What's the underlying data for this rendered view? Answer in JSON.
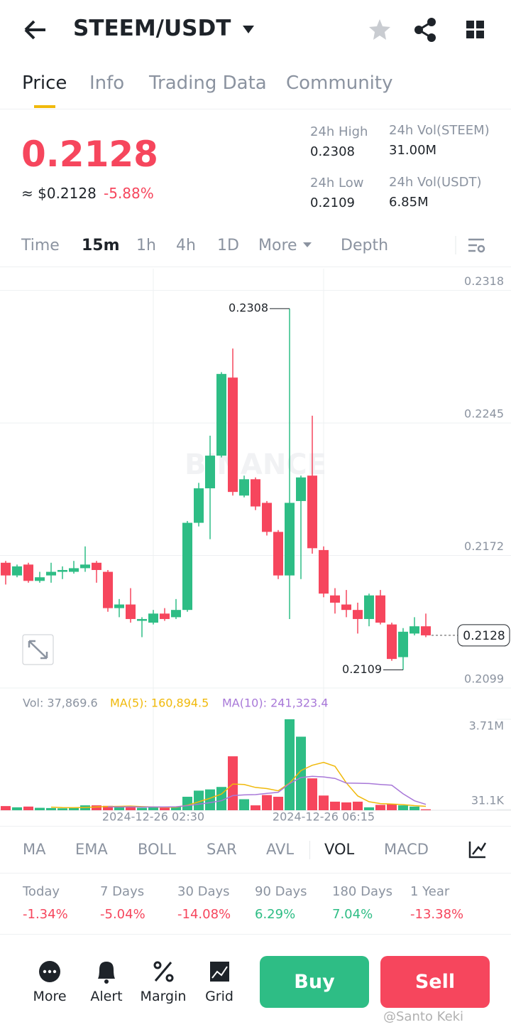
{
  "header": {
    "pair": "STEEM/USDT"
  },
  "tabs": [
    "Price",
    "Info",
    "Trading Data",
    "Community"
  ],
  "price": {
    "last": "0.2128",
    "usd": "≈ $0.2128",
    "change": "-5.88%"
  },
  "stats": [
    {
      "label": "24h High",
      "value": "0.2308"
    },
    {
      "label": "24h Vol(STEEM)",
      "value": "31.00M"
    },
    {
      "label": "24h Low",
      "value": "0.2109"
    },
    {
      "label": "24h Vol(USDT)",
      "value": "6.85M"
    }
  ],
  "intervals": [
    "Time",
    "15m",
    "1h",
    "4h",
    "1D",
    "More",
    "Depth"
  ],
  "chart_data": {
    "type": "candlestick",
    "watermark": "BINANCE",
    "categories": [
      null,
      null,
      null,
      null,
      null,
      null,
      null,
      null,
      null,
      null,
      null,
      null,
      null,
      "2024-12-26 02:30",
      null,
      null,
      null,
      null,
      null,
      null,
      null,
      null,
      null,
      null,
      null,
      null,
      null,
      null,
      "2024-12-26 06:15",
      null,
      null,
      null,
      null,
      null,
      null,
      null,
      null,
      null
    ],
    "open": [
      0.2168,
      0.2161,
      0.2167,
      0.2158,
      0.2161,
      0.2163,
      0.2163,
      0.2165,
      0.2168,
      0.2163,
      0.2143,
      0.2145,
      0.2136,
      0.2135,
      0.214,
      0.2138,
      0.2142,
      0.219,
      0.2209,
      0.2227,
      0.227,
      0.2205,
      0.2214,
      0.2201,
      0.2185,
      0.2161,
      0.2202,
      0.2216,
      0.2175,
      0.215,
      0.2145,
      0.2142,
      0.2137,
      0.215,
      0.2134,
      0.2116,
      0.2129,
      0.2133
    ],
    "high": [
      0.2169,
      0.2167,
      0.2168,
      0.2163,
      0.2168,
      0.2166,
      0.2169,
      0.2177,
      0.2169,
      0.2164,
      0.2148,
      0.2154,
      0.2138,
      0.2142,
      0.2143,
      0.2148,
      0.2191,
      0.2212,
      0.2238,
      0.2273,
      0.2286,
      0.2216,
      0.2215,
      0.2202,
      0.2186,
      0.2308,
      0.2216,
      0.2249,
      0.2177,
      0.2154,
      0.2153,
      0.2146,
      0.2151,
      0.2153,
      0.2135,
      0.2132,
      0.2138,
      0.214
    ],
    "low": [
      0.2156,
      0.216,
      0.2157,
      0.2157,
      0.2157,
      0.2159,
      0.2162,
      0.2163,
      0.2157,
      0.2141,
      0.2138,
      0.2135,
      0.2127,
      0.2134,
      0.2136,
      0.2137,
      0.2141,
      0.2188,
      0.2181,
      0.2226,
      0.2205,
      0.2204,
      0.2197,
      0.2183,
      0.2159,
      0.2137,
      0.2159,
      0.2173,
      0.2149,
      0.214,
      0.2138,
      0.2129,
      0.2133,
      0.2134,
      0.2114,
      0.2109,
      0.2128,
      0.2127
    ],
    "close": [
      0.2161,
      0.2166,
      0.2158,
      0.216,
      0.2163,
      0.2164,
      0.2165,
      0.2167,
      0.2164,
      0.2143,
      0.2145,
      0.2137,
      0.2137,
      0.214,
      0.2137,
      0.2142,
      0.219,
      0.2209,
      0.2227,
      0.2272,
      0.2207,
      0.2214,
      0.2199,
      0.2185,
      0.2161,
      0.2201,
      0.2215,
      0.2176,
      0.2151,
      0.2146,
      0.2142,
      0.2137,
      0.215,
      0.2135,
      0.2115,
      0.213,
      0.2133,
      0.2128
    ],
    "up_color": "#2ebd85",
    "down_color": "#f6465d",
    "ylim": [
      0.2099,
      0.233
    ],
    "yticks": [
      0.2318,
      0.2245,
      0.2172,
      0.2099
    ],
    "grid": true,
    "volume": {
      "values": [
        170000,
        120000,
        150000,
        100000,
        90000,
        80000,
        100000,
        200000,
        200000,
        180000,
        120000,
        150000,
        100000,
        120000,
        100000,
        150000,
        550000,
        800000,
        850000,
        950000,
        2200000,
        450000,
        200000,
        620000,
        550000,
        3710000,
        3000000,
        1300000,
        600000,
        350000,
        320000,
        350000,
        120000,
        220000,
        250000,
        200000,
        150000,
        37869.6
      ],
      "ma5": [
        null,
        null,
        null,
        null,
        126000,
        108000,
        104000,
        114000,
        134000,
        152000,
        160000,
        170000,
        150000,
        134000,
        118000,
        124000,
        204000,
        344000,
        490000,
        660000,
        1070000,
        1050000,
        930000,
        884000,
        794000,
        1106000,
        1616000,
        1836000,
        1952000,
        1792000,
        1114000,
        584000,
        348000,
        272000,
        252000,
        228000,
        188000,
        160894.5
      ],
      "ma10": [
        null,
        null,
        null,
        null,
        null,
        null,
        null,
        null,
        null,
        139000,
        134000,
        137000,
        132000,
        134000,
        135000,
        142000,
        187000,
        247000,
        312000,
        389000,
        597000,
        627000,
        637000,
        687000,
        732000,
        1088000,
        1333000,
        1383000,
        1358000,
        1298000,
        1110000,
        1100000,
        1092000,
        1052000,
        1022000,
        671000,
        386000,
        241323.4
      ],
      "ma5_color": "#f0b90b",
      "ma10_color": "#a878d8",
      "ylim": [
        0,
        3710000
      ],
      "yticks": [
        {
          "value": 3710000,
          "label": "3.71M"
        },
        {
          "value": 31100,
          "label": "31.1K"
        }
      ],
      "legend": [
        "Vol: 37,869.6",
        "MA(5): 160,894.5",
        "MA(10): 241,323.4"
      ]
    }
  },
  "indicators": [
    "MA",
    "EMA",
    "BOLL",
    "SAR",
    "AVL",
    "VOL",
    "MACD"
  ],
  "performance": [
    {
      "label": "Today",
      "value": "-1.34%"
    },
    {
      "label": "7 Days",
      "value": "-5.04%"
    },
    {
      "label": "30 Days",
      "value": "-14.08%"
    },
    {
      "label": "90 Days",
      "value": "6.29%"
    },
    {
      "label": "180 Days",
      "value": "7.04%"
    },
    {
      "label": "1 Year",
      "value": "-13.38%"
    }
  ],
  "bottom": [
    "More",
    "Alert",
    "Margin",
    "Grid"
  ],
  "actions": {
    "buy": "Buy",
    "sell": "Sell"
  },
  "watermark": "@Santo Keki"
}
